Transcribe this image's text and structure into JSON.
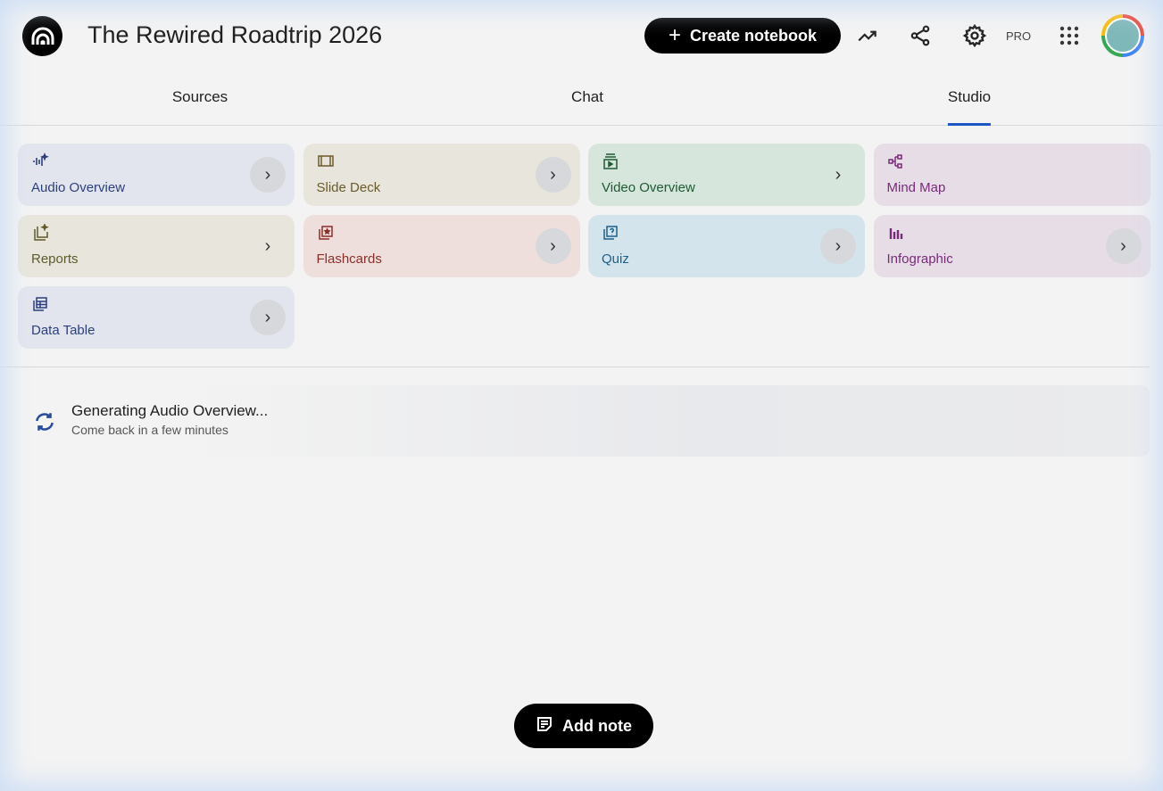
{
  "header": {
    "title": "The Rewired Roadtrip 2026",
    "create_label": "Create notebook",
    "pro_label": "PRO"
  },
  "tabs": [
    {
      "label": "Sources"
    },
    {
      "label": "Chat"
    },
    {
      "label": "Studio",
      "active": true
    }
  ],
  "studio": {
    "cards": [
      {
        "label": "Audio Overview",
        "icon": "audio-sparkle-icon",
        "bg": "#e3e5ee",
        "color": "#2b3f7c"
      },
      {
        "label": "Slide Deck",
        "icon": "slides-icon",
        "bg": "#e8e6dc",
        "color": "#6b5a2a"
      },
      {
        "label": "Video Overview",
        "icon": "video-icon",
        "bg": "#d6e6dc",
        "color": "#1e5a32"
      },
      {
        "label": "Mind Map",
        "icon": "mind-map-icon",
        "bg": "#e6dde6",
        "color": "#7a2a7a"
      },
      {
        "label": "Reports",
        "icon": "reports-icon",
        "bg": "#e8e6dc",
        "color": "#5e5a2a"
      },
      {
        "label": "Flashcards",
        "icon": "flashcards-icon",
        "bg": "#eedfdc",
        "color": "#8a2e2a"
      },
      {
        "label": "Quiz",
        "icon": "quiz-icon",
        "bg": "#d4e4ec",
        "color": "#1c5f8a"
      },
      {
        "label": "Infographic",
        "icon": "infographic-icon",
        "bg": "#e6dde6",
        "color": "#7a2a7a"
      },
      {
        "label": "Data Table",
        "icon": "table-icon",
        "bg": "#e3e5ee",
        "color": "#2b3f7c"
      }
    ]
  },
  "generating": {
    "title": "Generating Audio Overview...",
    "subtitle": "Come back in a few minutes"
  },
  "add_note_label": "Add note"
}
